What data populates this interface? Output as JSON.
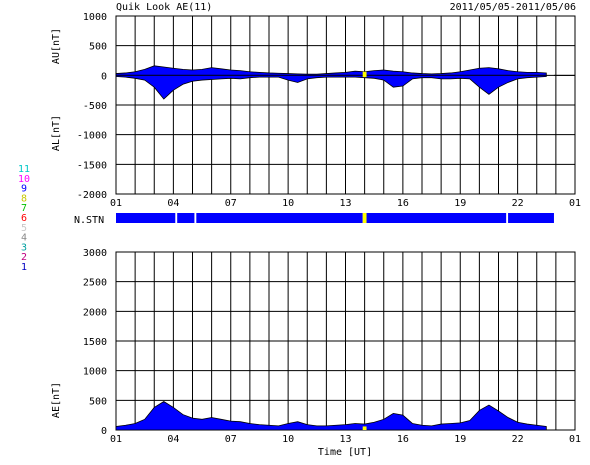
{
  "header": {
    "title": "Quik Look AE(11)",
    "date_range": "2011/05/05-2011/05/06"
  },
  "stations_legend": [
    "11",
    "10",
    "9",
    "8",
    "7",
    "6",
    "5",
    "4",
    "3",
    "2",
    "1"
  ],
  "stations_colors": [
    "#00c8c8",
    "#ff00ff",
    "#0000ff",
    "#c8c800",
    "#00c000",
    "#ff0000",
    "#c8c8c8",
    "#888888",
    "#00a0a0",
    "#c00080",
    "#0000c0"
  ],
  "colors": {
    "fill": "#0000ff",
    "outline": "#000000",
    "gap": "#ffff00"
  },
  "x_axis": {
    "label": "Time [UT]",
    "ticks": [
      "01",
      "04",
      "07",
      "10",
      "13",
      "16",
      "19",
      "22",
      "01"
    ],
    "range_hours": [
      0,
      24
    ]
  },
  "chart_data": [
    {
      "type": "area",
      "panel": "AU/AL",
      "ylabel_top": "AU[nT]",
      "ylabel_bottom": "AL[nT]",
      "ylim": [
        -2000,
        1000
      ],
      "yticks": [
        "1000",
        "500",
        "0",
        "-500",
        "-1000",
        "-1500",
        "-2000"
      ],
      "series": [
        {
          "name": "AU",
          "x": [
            0,
            0.5,
            1,
            1.5,
            2,
            2.5,
            3,
            3.5,
            4,
            4.5,
            5,
            5.5,
            6,
            6.5,
            7,
            7.5,
            8,
            8.5,
            9,
            9.5,
            10,
            10.5,
            11,
            11.5,
            12,
            12.5,
            13,
            13.5,
            14,
            14.5,
            15,
            15.5,
            16,
            16.5,
            17,
            17.5,
            18,
            18.5,
            19,
            19.5,
            20,
            20.5,
            21,
            21.5,
            22,
            22.5
          ],
          "values": [
            30,
            40,
            60,
            100,
            160,
            140,
            120,
            100,
            90,
            100,
            130,
            110,
            90,
            80,
            60,
            50,
            40,
            35,
            30,
            25,
            20,
            20,
            30,
            40,
            50,
            70,
            60,
            80,
            90,
            70,
            60,
            40,
            30,
            25,
            30,
            40,
            60,
            90,
            120,
            130,
            110,
            80,
            60,
            50,
            50,
            40
          ]
        },
        {
          "name": "AL",
          "x": [
            0,
            0.5,
            1,
            1.5,
            2,
            2.5,
            3,
            3.5,
            4,
            4.5,
            5,
            5.5,
            6,
            6.5,
            7,
            7.5,
            8,
            8.5,
            9,
            9.5,
            10,
            10.5,
            11,
            11.5,
            12,
            12.5,
            13,
            13.5,
            14,
            14.5,
            15,
            15.5,
            16,
            16.5,
            17,
            17.5,
            18,
            18.5,
            19,
            19.5,
            20,
            20.5,
            21,
            21.5,
            22,
            22.5
          ],
          "values": [
            -20,
            -30,
            -50,
            -80,
            -200,
            -400,
            -250,
            -150,
            -100,
            -80,
            -70,
            -60,
            -50,
            -60,
            -40,
            -30,
            -30,
            -30,
            -80,
            -120,
            -60,
            -40,
            -30,
            -30,
            -30,
            -30,
            -40,
            -50,
            -80,
            -200,
            -180,
            -60,
            -40,
            -40,
            -60,
            -60,
            -50,
            -60,
            -200,
            -320,
            -200,
            -120,
            -60,
            -40,
            -30,
            -20
          ]
        }
      ]
    },
    {
      "type": "bar",
      "panel": "N.STN",
      "ylabel": "N.STN",
      "segments_hours": [
        [
          0,
          3.1
        ],
        [
          3.2,
          4.1
        ],
        [
          4.2,
          12.9
        ],
        [
          12.9,
          13.1
        ],
        [
          13.1,
          20.4
        ],
        [
          20.5,
          22.9
        ]
      ],
      "segment_colors": [
        "#0000ff",
        "#0000ff",
        "#0000ff",
        "#ffff00",
        "#0000ff",
        "#0000ff"
      ]
    },
    {
      "type": "area",
      "panel": "AE",
      "ylabel": "AE[nT]",
      "ylim": [
        0,
        3000
      ],
      "yticks": [
        "3000",
        "2500",
        "2000",
        "1500",
        "1000",
        "500",
        "0"
      ],
      "series": [
        {
          "name": "AE",
          "x": [
            0,
            0.5,
            1,
            1.5,
            2,
            2.5,
            3,
            3.5,
            4,
            4.5,
            5,
            5.5,
            6,
            6.5,
            7,
            7.5,
            8,
            8.5,
            9,
            9.5,
            10,
            10.5,
            11,
            11.5,
            12,
            12.5,
            13,
            13.5,
            14,
            14.5,
            15,
            15.5,
            16,
            16.5,
            17,
            17.5,
            18,
            18.5,
            19,
            19.5,
            20,
            20.5,
            21,
            21.5,
            22,
            22.5
          ],
          "values": [
            60,
            80,
            110,
            180,
            380,
            480,
            380,
            260,
            200,
            180,
            210,
            180,
            150,
            140,
            110,
            90,
            80,
            70,
            110,
            140,
            90,
            70,
            70,
            80,
            90,
            110,
            100,
            130,
            180,
            280,
            250,
            110,
            80,
            70,
            100,
            110,
            120,
            160,
            330,
            420,
            320,
            210,
            130,
            100,
            80,
            60
          ]
        }
      ]
    }
  ]
}
